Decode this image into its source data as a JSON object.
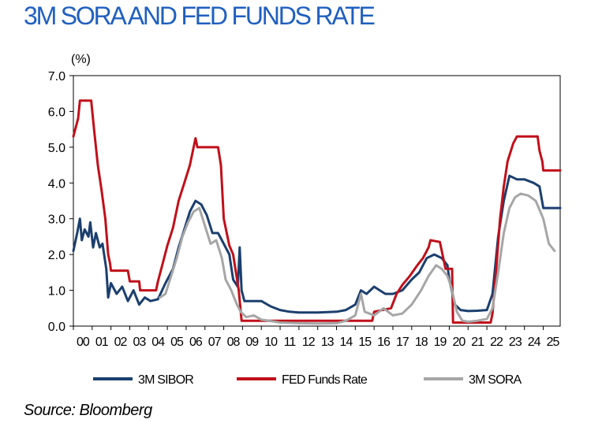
{
  "title": "3M SORA AND FED FUNDS RATE",
  "source": "Source: Bloomberg",
  "chart_data": {
    "type": "line",
    "title": "3M SORA AND FED FUNDS RATE",
    "ylabel": "(%)",
    "xlabel": "",
    "ylim": [
      0,
      7
    ],
    "xlim": [
      2000,
      2025.9
    ],
    "yticks": [
      "0.0",
      "1.0",
      "2.0",
      "3.0",
      "4.0",
      "5.0",
      "6.0",
      "7.0"
    ],
    "yticks_values": [
      0,
      1,
      2,
      3,
      4,
      5,
      6,
      7
    ],
    "xticks": [
      "00",
      "01",
      "02",
      "03",
      "04",
      "05",
      "06",
      "07",
      "08",
      "09",
      "10",
      "11",
      "12",
      "13",
      "14",
      "15",
      "16",
      "17",
      "18",
      "19",
      "20",
      "21",
      "22",
      "23",
      "24",
      "25"
    ],
    "grid": false,
    "legend_position": "bottom",
    "series": [
      {
        "name": "3M SIBOR",
        "color": "#1b3f6e",
        "points": [
          [
            2000.0,
            2.1
          ],
          [
            2000.2,
            2.6
          ],
          [
            2000.35,
            3.0
          ],
          [
            2000.45,
            2.4
          ],
          [
            2000.6,
            2.7
          ],
          [
            2000.8,
            2.5
          ],
          [
            2000.9,
            2.9
          ],
          [
            2001.05,
            2.2
          ],
          [
            2001.2,
            2.6
          ],
          [
            2001.4,
            2.2
          ],
          [
            2001.55,
            2.3
          ],
          [
            2001.75,
            1.6
          ],
          [
            2001.85,
            0.8
          ],
          [
            2002.0,
            1.2
          ],
          [
            2002.3,
            0.9
          ],
          [
            2002.6,
            1.1
          ],
          [
            2002.9,
            0.7
          ],
          [
            2003.2,
            1.0
          ],
          [
            2003.5,
            0.6
          ],
          [
            2003.8,
            0.8
          ],
          [
            2004.1,
            0.7
          ],
          [
            2004.5,
            0.75
          ],
          [
            2004.9,
            1.2
          ],
          [
            2005.3,
            1.6
          ],
          [
            2005.6,
            2.2
          ],
          [
            2005.9,
            2.7
          ],
          [
            2006.2,
            3.2
          ],
          [
            2006.5,
            3.5
          ],
          [
            2006.8,
            3.4
          ],
          [
            2007.1,
            3.1
          ],
          [
            2007.4,
            2.6
          ],
          [
            2007.7,
            2.6
          ],
          [
            2008.0,
            2.3
          ],
          [
            2008.3,
            2.0
          ],
          [
            2008.5,
            1.3
          ],
          [
            2008.75,
            1.1
          ],
          [
            2008.85,
            2.2
          ],
          [
            2008.95,
            1.0
          ],
          [
            2009.1,
            0.7
          ],
          [
            2009.6,
            0.7
          ],
          [
            2010.0,
            0.7
          ],
          [
            2010.5,
            0.55
          ],
          [
            2011.0,
            0.45
          ],
          [
            2011.5,
            0.4
          ],
          [
            2012.0,
            0.38
          ],
          [
            2013.0,
            0.38
          ],
          [
            2014.0,
            0.4
          ],
          [
            2014.5,
            0.45
          ],
          [
            2015.0,
            0.6
          ],
          [
            2015.3,
            1.0
          ],
          [
            2015.6,
            0.9
          ],
          [
            2016.0,
            1.1
          ],
          [
            2016.3,
            1.0
          ],
          [
            2016.6,
            0.9
          ],
          [
            2017.0,
            0.9
          ],
          [
            2017.5,
            1.0
          ],
          [
            2018.0,
            1.3
          ],
          [
            2018.4,
            1.5
          ],
          [
            2018.8,
            1.9
          ],
          [
            2019.2,
            2.0
          ],
          [
            2019.6,
            1.9
          ],
          [
            2019.9,
            1.7
          ],
          [
            2020.0,
            1.3
          ],
          [
            2020.3,
            0.6
          ],
          [
            2020.6,
            0.45
          ],
          [
            2021.0,
            0.42
          ],
          [
            2021.5,
            0.43
          ],
          [
            2022.0,
            0.45
          ],
          [
            2022.3,
            0.9
          ],
          [
            2022.6,
            2.5
          ],
          [
            2022.9,
            3.5
          ],
          [
            2023.2,
            4.2
          ],
          [
            2023.6,
            4.1
          ],
          [
            2024.0,
            4.1
          ],
          [
            2024.5,
            4.0
          ],
          [
            2024.8,
            3.9
          ],
          [
            2025.0,
            3.3
          ],
          [
            2025.9,
            3.3
          ]
        ]
      },
      {
        "name": "FED Funds Rate",
        "color": "#c0101a",
        "points": [
          [
            2000.0,
            5.3
          ],
          [
            2000.1,
            5.5
          ],
          [
            2000.25,
            5.8
          ],
          [
            2000.35,
            6.3
          ],
          [
            2000.95,
            6.3
          ],
          [
            2001.1,
            5.5
          ],
          [
            2001.3,
            4.5
          ],
          [
            2001.5,
            3.8
          ],
          [
            2001.7,
            3.0
          ],
          [
            2001.85,
            2.0
          ],
          [
            2001.95,
            1.75
          ],
          [
            2002.0,
            1.55
          ],
          [
            2002.9,
            1.55
          ],
          [
            2003.0,
            1.25
          ],
          [
            2003.5,
            1.25
          ],
          [
            2003.55,
            1.0
          ],
          [
            2004.4,
            1.0
          ],
          [
            2004.5,
            1.25
          ],
          [
            2004.75,
            1.75
          ],
          [
            2005.0,
            2.25
          ],
          [
            2005.3,
            2.75
          ],
          [
            2005.6,
            3.5
          ],
          [
            2005.9,
            4.0
          ],
          [
            2006.2,
            4.5
          ],
          [
            2006.5,
            5.25
          ],
          [
            2006.6,
            5.0
          ],
          [
            2007.7,
            5.0
          ],
          [
            2007.85,
            4.5
          ],
          [
            2008.0,
            3.0
          ],
          [
            2008.3,
            2.25
          ],
          [
            2008.5,
            2.0
          ],
          [
            2008.8,
            1.0
          ],
          [
            2008.95,
            0.15
          ],
          [
            2015.9,
            0.15
          ],
          [
            2016.0,
            0.4
          ],
          [
            2016.9,
            0.5
          ],
          [
            2017.2,
            0.9
          ],
          [
            2017.5,
            1.15
          ],
          [
            2017.9,
            1.4
          ],
          [
            2018.3,
            1.7
          ],
          [
            2018.6,
            1.9
          ],
          [
            2018.9,
            2.2
          ],
          [
            2019.0,
            2.4
          ],
          [
            2019.5,
            2.35
          ],
          [
            2019.6,
            2.1
          ],
          [
            2019.8,
            1.6
          ],
          [
            2020.15,
            1.6
          ],
          [
            2020.2,
            0.1
          ],
          [
            2022.2,
            0.1
          ],
          [
            2022.3,
            0.35
          ],
          [
            2022.5,
            1.6
          ],
          [
            2022.7,
            3.0
          ],
          [
            2022.9,
            3.9
          ],
          [
            2023.1,
            4.6
          ],
          [
            2023.4,
            5.1
          ],
          [
            2023.6,
            5.3
          ],
          [
            2024.7,
            5.3
          ],
          [
            2024.8,
            4.9
          ],
          [
            2024.95,
            4.6
          ],
          [
            2025.0,
            4.35
          ],
          [
            2025.9,
            4.35
          ]
        ]
      },
      {
        "name": "3M SORA",
        "color": "#a6a6a6",
        "points": [
          [
            2004.6,
            0.8
          ],
          [
            2004.9,
            0.9
          ],
          [
            2005.2,
            1.4
          ],
          [
            2005.5,
            1.9
          ],
          [
            2005.8,
            2.5
          ],
          [
            2006.1,
            2.9
          ],
          [
            2006.4,
            3.2
          ],
          [
            2006.7,
            3.3
          ],
          [
            2007.0,
            2.8
          ],
          [
            2007.3,
            2.3
          ],
          [
            2007.6,
            2.4
          ],
          [
            2007.9,
            1.9
          ],
          [
            2008.1,
            1.3
          ],
          [
            2008.4,
            1.0
          ],
          [
            2008.7,
            0.6
          ],
          [
            2008.9,
            0.4
          ],
          [
            2009.2,
            0.25
          ],
          [
            2009.6,
            0.3
          ],
          [
            2010.0,
            0.18
          ],
          [
            2010.5,
            0.14
          ],
          [
            2011.0,
            0.1
          ],
          [
            2012.0,
            0.08
          ],
          [
            2013.0,
            0.07
          ],
          [
            2014.0,
            0.08
          ],
          [
            2014.5,
            0.15
          ],
          [
            2015.0,
            0.3
          ],
          [
            2015.3,
            0.9
          ],
          [
            2015.5,
            0.4
          ],
          [
            2016.0,
            0.3
          ],
          [
            2016.5,
            0.5
          ],
          [
            2017.0,
            0.3
          ],
          [
            2017.5,
            0.35
          ],
          [
            2018.0,
            0.6
          ],
          [
            2018.5,
            1.0
          ],
          [
            2018.9,
            1.4
          ],
          [
            2019.3,
            1.7
          ],
          [
            2019.6,
            1.6
          ],
          [
            2019.9,
            1.4
          ],
          [
            2020.1,
            1.1
          ],
          [
            2020.4,
            0.4
          ],
          [
            2020.7,
            0.15
          ],
          [
            2021.0,
            0.12
          ],
          [
            2021.5,
            0.15
          ],
          [
            2022.0,
            0.2
          ],
          [
            2022.3,
            0.5
          ],
          [
            2022.6,
            1.5
          ],
          [
            2022.9,
            2.6
          ],
          [
            2023.2,
            3.3
          ],
          [
            2023.5,
            3.6
          ],
          [
            2023.8,
            3.7
          ],
          [
            2024.2,
            3.65
          ],
          [
            2024.6,
            3.5
          ],
          [
            2025.0,
            3.0
          ],
          [
            2025.3,
            2.3
          ],
          [
            2025.6,
            2.1
          ]
        ]
      }
    ]
  }
}
